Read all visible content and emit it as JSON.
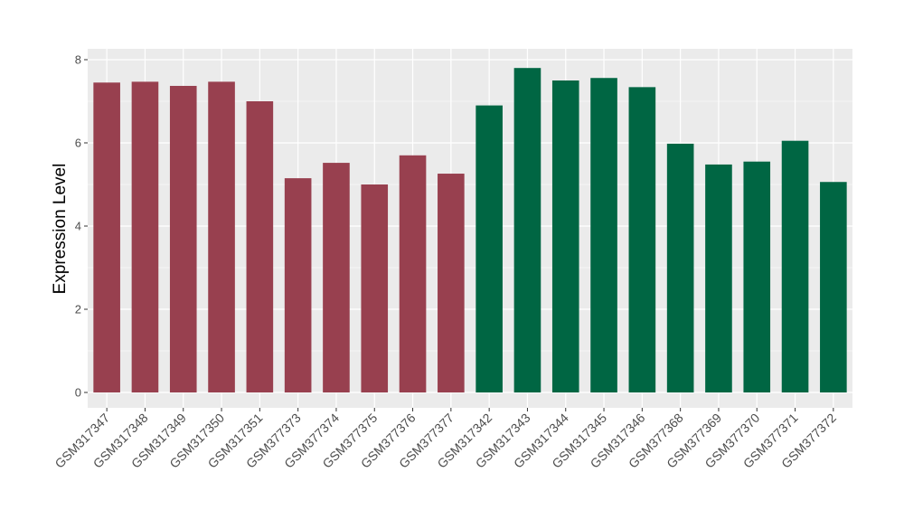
{
  "chart_data": {
    "type": "bar",
    "title": "",
    "xlabel": "",
    "ylabel": "Expression Level",
    "ylim": [
      0,
      8.3
    ],
    "yticks": [
      0,
      2,
      4,
      6,
      8
    ],
    "grid": true,
    "categories": [
      "GSM317347",
      "GSM317348",
      "GSM317349",
      "GSM317350",
      "GSM317351",
      "GSM377373",
      "GSM377374",
      "GSM377375",
      "GSM377376",
      "GSM377377",
      "GSM317342",
      "GSM317343",
      "GSM317344",
      "GSM317345",
      "GSM317346",
      "GSM377368",
      "GSM377369",
      "GSM377370",
      "GSM377371",
      "GSM377372"
    ],
    "values": [
      7.45,
      7.47,
      7.37,
      7.47,
      7.0,
      5.15,
      5.52,
      5.0,
      5.7,
      5.26,
      6.9,
      7.8,
      7.5,
      7.56,
      7.34,
      5.98,
      5.48,
      5.55,
      6.05,
      5.06
    ],
    "bar_colors": [
      "#98404f",
      "#98404f",
      "#98404f",
      "#98404f",
      "#98404f",
      "#98404f",
      "#98404f",
      "#98404f",
      "#98404f",
      "#98404f",
      "#006643",
      "#006643",
      "#006643",
      "#006643",
      "#006643",
      "#006643",
      "#006643",
      "#006643",
      "#006643",
      "#006643"
    ],
    "panel_background": "#ebebeb",
    "grid_color": "#ffffff"
  }
}
